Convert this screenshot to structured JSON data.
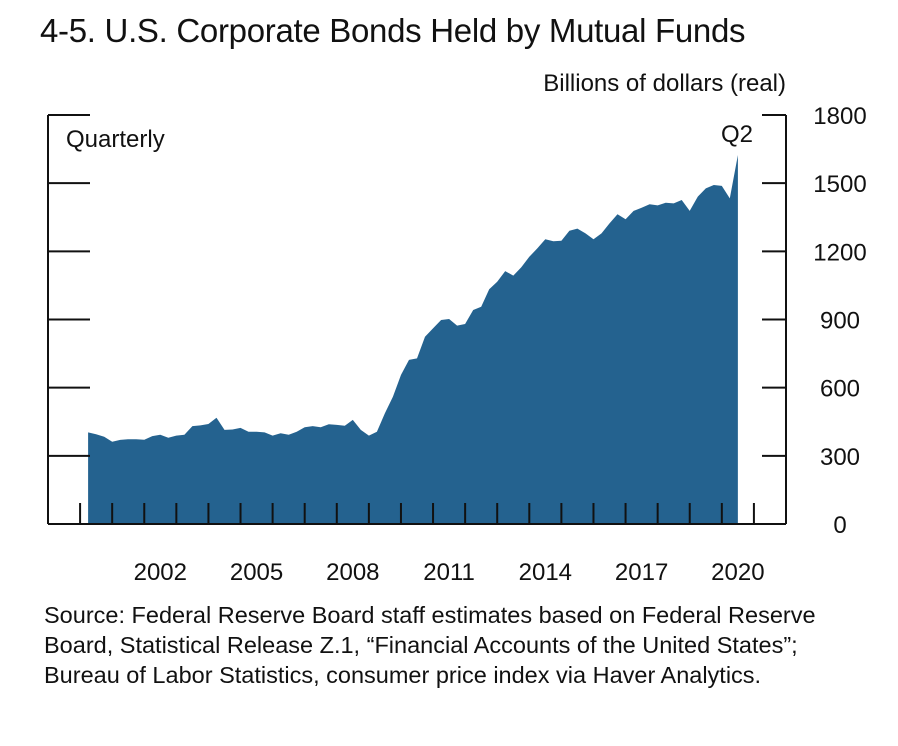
{
  "chart_data": {
    "type": "area",
    "title": "4-5. U.S. Corporate Bonds Held by Mutual Funds",
    "ylabel": "Billions of dollars (real)",
    "frequency_label": "Quarterly",
    "end_label": "Q2",
    "color": "#24628f",
    "ylim": [
      0,
      1800
    ],
    "yticks": [
      0,
      300,
      600,
      900,
      1200,
      1500,
      1800
    ],
    "xlim": [
      1999,
      2022
    ],
    "xtick_labels": [
      "2002",
      "2005",
      "2008",
      "2011",
      "2014",
      "2017",
      "2020"
    ],
    "y_axis_position": "right",
    "grid": false,
    "start": "2000 Q1",
    "end": "2020 Q2",
    "values": [
      403,
      395,
      384,
      362,
      370,
      373,
      373,
      371,
      387,
      393,
      380,
      389,
      393,
      431,
      434,
      440,
      468,
      414,
      416,
      423,
      406,
      406,
      403,
      389,
      399,
      393,
      406,
      426,
      431,
      426,
      439,
      436,
      432,
      458,
      414,
      389,
      406,
      487,
      560,
      656,
      722,
      729,
      824,
      861,
      898,
      902,
      873,
      880,
      942,
      956,
      1033,
      1066,
      1113,
      1093,
      1130,
      1176,
      1213,
      1253,
      1244,
      1247,
      1291,
      1300,
      1279,
      1253,
      1279,
      1323,
      1363,
      1341,
      1378,
      1392,
      1407,
      1402,
      1414,
      1411,
      1426,
      1378,
      1441,
      1477,
      1492,
      1488,
      1433,
      1624
    ]
  },
  "source": "Source: Federal Reserve Board staff estimates based on Federal Reserve Board, Statistical Release Z.1, “Financial Accounts of the United States”; Bureau of Labor Statistics, consumer price index via Haver Analytics."
}
